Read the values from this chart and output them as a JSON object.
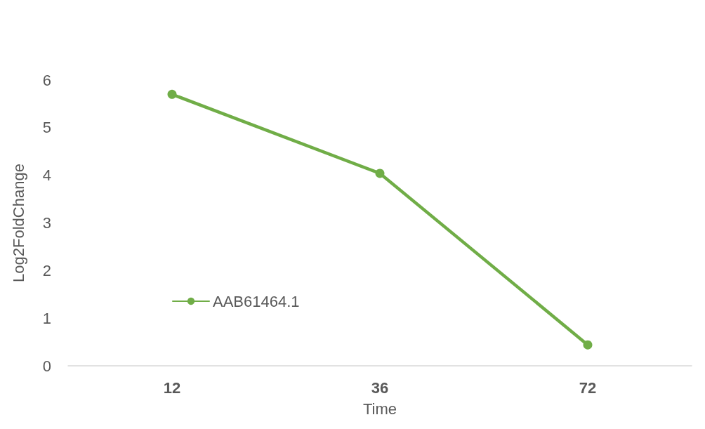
{
  "chart_data": {
    "type": "line",
    "xlabel": "Time",
    "ylabel": "Log2FoldChange",
    "categories": [
      "12",
      "36",
      "72"
    ],
    "series": [
      {
        "name": "AAB61464.1",
        "color": "#70ad47",
        "values": [
          5.7,
          4.04,
          0.44
        ]
      }
    ],
    "ylim": [
      0,
      6
    ],
    "yticks": [
      0,
      1,
      2,
      3,
      4,
      5,
      6
    ],
    "grid": false,
    "legend": "bottom left",
    "marker": "circle",
    "line_style": "solid"
  }
}
